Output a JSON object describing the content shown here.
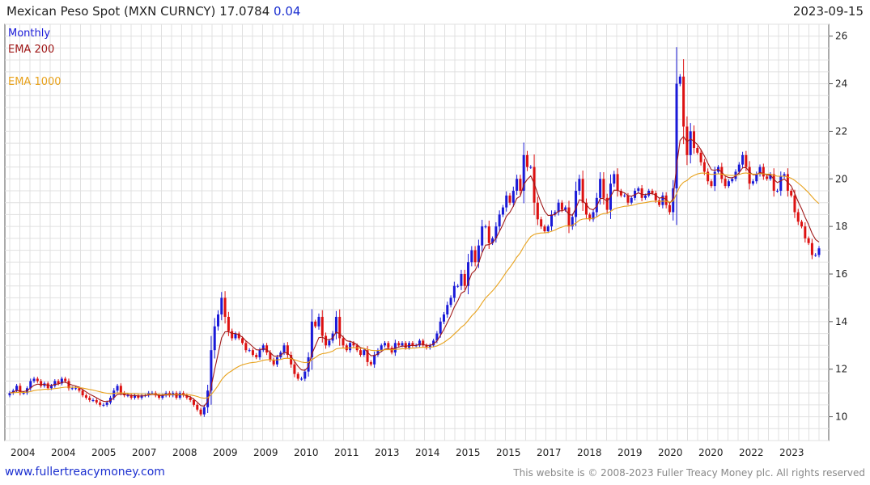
{
  "header": {
    "title": "Mexican Peso Spot (MXN CURNCY)",
    "last": "17.0784",
    "change": "0.04",
    "date": "2023-09-15"
  },
  "footer": {
    "site": "www.fullertreacymoney.com",
    "copyright": "This website is © 2008-2023 Fuller Treacy Money plc. All rights reserved"
  },
  "colors": {
    "up": "#1a1ad8",
    "down": "#dd1111",
    "ema200": "#a01818",
    "ema1000": "#e8a21c",
    "grid": "#e0e0e0"
  },
  "chart_data": {
    "type": "candlestick",
    "interval": "Monthly",
    "legend": [
      "Monthly",
      "EMA 200",
      "EMA 1000"
    ],
    "legend_position": "top-left",
    "ylim": [
      9,
      26.5
    ],
    "y_ticks": [
      10,
      12,
      14,
      16,
      18,
      20,
      22,
      24,
      26
    ],
    "x_tick_labels": [
      "2004",
      "2004",
      "2005",
      "2007",
      "2008",
      "2009",
      "2009",
      "2010",
      "2011",
      "2013",
      "2014",
      "2015",
      "2015",
      "2017",
      "2018",
      "2019",
      "2020",
      "2020",
      "2022",
      "2023"
    ],
    "grid": true,
    "start_month": "2003-09",
    "close": [
      11.0,
      11.1,
      11.3,
      11.0,
      11.0,
      11.2,
      11.5,
      11.6,
      11.5,
      11.3,
      11.4,
      11.2,
      11.3,
      11.5,
      11.4,
      11.6,
      11.5,
      11.2,
      11.2,
      11.2,
      11.1,
      10.9,
      10.8,
      10.7,
      10.7,
      10.6,
      10.5,
      10.5,
      10.6,
      10.8,
      11.1,
      11.3,
      11.0,
      10.9,
      10.9,
      10.8,
      10.9,
      10.8,
      10.9,
      10.9,
      11.0,
      11.0,
      10.9,
      10.8,
      10.9,
      11.0,
      10.9,
      11.0,
      10.8,
      11.0,
      10.9,
      10.8,
      10.7,
      10.5,
      10.3,
      10.1,
      10.4,
      11.1,
      12.8,
      13.8,
      14.3,
      15.0,
      14.2,
      13.6,
      13.3,
      13.5,
      13.3,
      13.1,
      12.8,
      12.8,
      12.6,
      12.5,
      12.8,
      13.0,
      12.7,
      12.4,
      12.2,
      12.5,
      12.7,
      13.0,
      12.6,
      12.2,
      11.8,
      11.6,
      11.6,
      11.9,
      12.5,
      14.0,
      13.8,
      14.2,
      13.4,
      13.0,
      13.2,
      13.5,
      14.2,
      13.3,
      13.0,
      12.8,
      13.1,
      13.0,
      12.8,
      12.6,
      12.8,
      12.3,
      12.2,
      12.6,
      12.8,
      13.0,
      13.1,
      12.9,
      12.7,
      13.1,
      13.0,
      13.1,
      12.9,
      13.1,
      13.0,
      13.0,
      13.2,
      13.0,
      12.9,
      13.0,
      13.2,
      13.5,
      14.0,
      14.3,
      14.7,
      15.0,
      15.5,
      15.5,
      16.0,
      15.5,
      16.5,
      17.0,
      16.5,
      17.2,
      18.0,
      18.0,
      17.3,
      17.5,
      18.0,
      18.5,
      18.8,
      19.3,
      19.0,
      19.5,
      20.0,
      19.5,
      21.0,
      20.5,
      20.5,
      19.0,
      18.3,
      18.0,
      17.8,
      18.0,
      18.5,
      18.6,
      19.0,
      18.7,
      18.8,
      18.0,
      18.4,
      19.5,
      20.0,
      19.0,
      18.5,
      18.3,
      18.6,
      19.2,
      20.0,
      19.2,
      18.7,
      19.8,
      20.2,
      19.5,
      19.3,
      19.3,
      19.0,
      19.2,
      19.5,
      19.6,
      19.2,
      19.3,
      19.5,
      19.4,
      19.1,
      18.9,
      19.3,
      18.9,
      18.6,
      19.6,
      24.0,
      24.3,
      22.2,
      21.0,
      22.0,
      21.3,
      21.1,
      20.7,
      20.3,
      19.9,
      19.7,
      20.3,
      20.5,
      20.0,
      19.7,
      19.9,
      20.0,
      20.3,
      20.6,
      21.0,
      20.5,
      19.8,
      19.9,
      20.2,
      20.5,
      20.1,
      20.0,
      20.2,
      19.5,
      19.5,
      20.1,
      20.2,
      19.5,
      19.3,
      18.6,
      18.2,
      18.0,
      17.5,
      17.3,
      16.8,
      16.8,
      17.08
    ]
  }
}
